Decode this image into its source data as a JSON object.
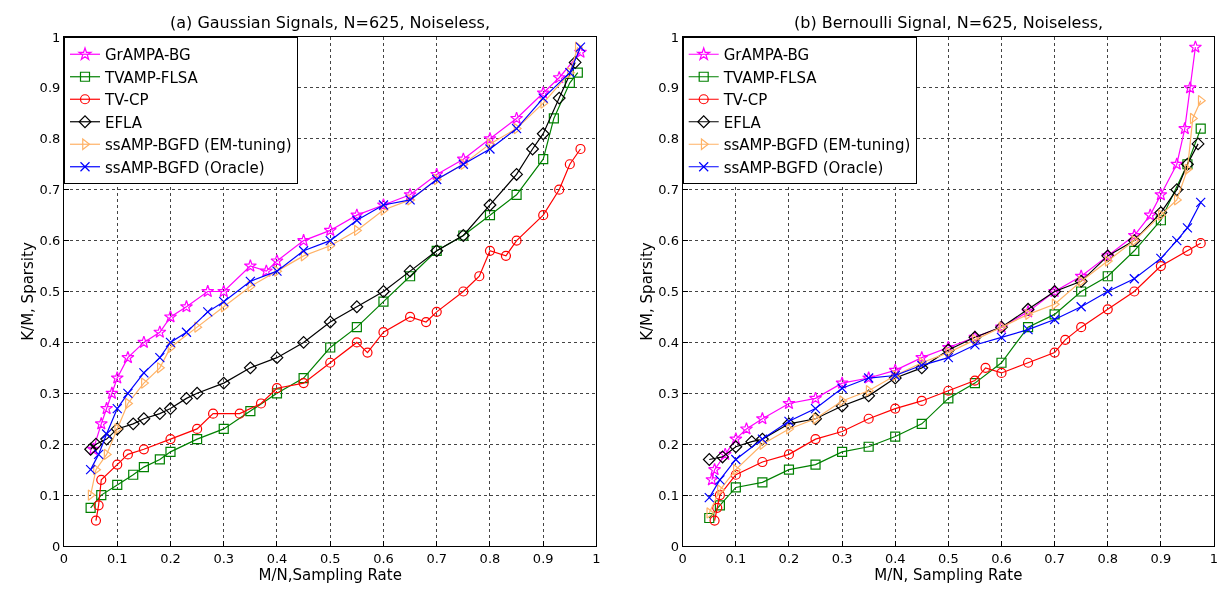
{
  "chart_data": [
    {
      "type": "line",
      "title": "(a) Gaussian Signals, N=625, Noiseless,",
      "xlabel": "M/N,Sampling Rate",
      "ylabel": "K/M, Sparsity",
      "xlim": [
        0,
        1
      ],
      "ylim": [
        0,
        1
      ],
      "xticks": [
        0,
        0.1,
        0.2,
        0.3,
        0.4,
        0.5,
        0.6,
        0.7,
        0.8,
        0.9,
        1
      ],
      "yticks": [
        0,
        0.1,
        0.2,
        0.3,
        0.4,
        0.5,
        0.6,
        0.7,
        0.8,
        0.9,
        1
      ],
      "grid": true,
      "legend": "top left",
      "series": [
        {
          "name": "GrAMPA-BG",
          "color": "#ff00ff",
          "marker": "star",
          "x": [
            0.055,
            0.07,
            0.08,
            0.09,
            0.1,
            0.12,
            0.15,
            0.18,
            0.2,
            0.23,
            0.27,
            0.3,
            0.35,
            0.38,
            0.4,
            0.45,
            0.5,
            0.55,
            0.6,
            0.65,
            0.7,
            0.75,
            0.8,
            0.85,
            0.9,
            0.93,
            0.97
          ],
          "values": [
            0.19,
            0.24,
            0.27,
            0.3,
            0.33,
            0.37,
            0.4,
            0.42,
            0.45,
            0.47,
            0.5,
            0.5,
            0.55,
            0.54,
            0.56,
            0.6,
            0.62,
            0.65,
            0.67,
            0.69,
            0.73,
            0.76,
            0.8,
            0.84,
            0.89,
            0.92,
            0.97
          ]
        },
        {
          "name": "TVAMP-FLSA",
          "color": "#008000",
          "marker": "square",
          "x": [
            0.05,
            0.07,
            0.1,
            0.13,
            0.15,
            0.18,
            0.2,
            0.25,
            0.3,
            0.35,
            0.4,
            0.45,
            0.5,
            0.55,
            0.6,
            0.65,
            0.7,
            0.75,
            0.8,
            0.85,
            0.9,
            0.92,
            0.95,
            0.965
          ],
          "values": [
            0.075,
            0.1,
            0.12,
            0.14,
            0.155,
            0.17,
            0.185,
            0.21,
            0.23,
            0.265,
            0.3,
            0.33,
            0.39,
            0.43,
            0.48,
            0.53,
            0.58,
            0.61,
            0.65,
            0.69,
            0.76,
            0.84,
            0.91,
            0.93
          ]
        },
        {
          "name": "TV-CP",
          "color": "#ff0000",
          "marker": "circle",
          "x": [
            0.06,
            0.065,
            0.07,
            0.1,
            0.12,
            0.15,
            0.2,
            0.25,
            0.28,
            0.33,
            0.37,
            0.4,
            0.45,
            0.5,
            0.55,
            0.57,
            0.6,
            0.65,
            0.68,
            0.7,
            0.75,
            0.78,
            0.8,
            0.83,
            0.85,
            0.9,
            0.93,
            0.95,
            0.97
          ],
          "values": [
            0.05,
            0.08,
            0.13,
            0.16,
            0.18,
            0.19,
            0.21,
            0.23,
            0.26,
            0.26,
            0.28,
            0.31,
            0.32,
            0.36,
            0.4,
            0.38,
            0.42,
            0.45,
            0.44,
            0.46,
            0.5,
            0.53,
            0.58,
            0.57,
            0.6,
            0.65,
            0.7,
            0.75,
            0.78
          ]
        },
        {
          "name": "EFLA",
          "color": "#000000",
          "marker": "diamond",
          "x": [
            0.05,
            0.06,
            0.08,
            0.1,
            0.13,
            0.15,
            0.18,
            0.2,
            0.23,
            0.25,
            0.3,
            0.35,
            0.4,
            0.45,
            0.5,
            0.55,
            0.6,
            0.65,
            0.7,
            0.75,
            0.8,
            0.85,
            0.88,
            0.9,
            0.93,
            0.96
          ],
          "values": [
            0.19,
            0.2,
            0.21,
            0.23,
            0.24,
            0.25,
            0.26,
            0.27,
            0.29,
            0.3,
            0.32,
            0.35,
            0.37,
            0.4,
            0.44,
            0.47,
            0.5,
            0.54,
            0.58,
            0.61,
            0.67,
            0.73,
            0.78,
            0.81,
            0.88,
            0.95
          ]
        },
        {
          "name": "ssAMP-BGFD (EM-tuning)",
          "color": "#ffb266",
          "marker": "triangle",
          "x": [
            0.05,
            0.06,
            0.08,
            0.1,
            0.12,
            0.15,
            0.18,
            0.2,
            0.25,
            0.3,
            0.35,
            0.4,
            0.45,
            0.5,
            0.55,
            0.6,
            0.65,
            0.7,
            0.75,
            0.8,
            0.85,
            0.9,
            0.95,
            0.965
          ],
          "values": [
            0.1,
            0.15,
            0.18,
            0.23,
            0.28,
            0.32,
            0.35,
            0.39,
            0.43,
            0.47,
            0.51,
            0.54,
            0.57,
            0.59,
            0.62,
            0.66,
            0.68,
            0.72,
            0.75,
            0.79,
            0.82,
            0.87,
            0.93,
            0.98
          ]
        },
        {
          "name": "ssAMP-BGFD (Oracle)",
          "color": "#0000ff",
          "marker": "cross",
          "x": [
            0.05,
            0.065,
            0.08,
            0.1,
            0.12,
            0.15,
            0.18,
            0.2,
            0.23,
            0.27,
            0.3,
            0.35,
            0.4,
            0.45,
            0.5,
            0.55,
            0.6,
            0.65,
            0.7,
            0.75,
            0.8,
            0.85,
            0.9,
            0.95,
            0.97
          ],
          "values": [
            0.15,
            0.18,
            0.22,
            0.27,
            0.3,
            0.34,
            0.37,
            0.4,
            0.42,
            0.46,
            0.48,
            0.52,
            0.54,
            0.58,
            0.6,
            0.64,
            0.67,
            0.68,
            0.72,
            0.75,
            0.78,
            0.82,
            0.88,
            0.93,
            0.98
          ]
        }
      ]
    },
    {
      "type": "line",
      "title": "(b) Bernoulli Signal, N=625, Noiseless,",
      "xlabel": "M/N, Sampling Rate",
      "ylabel": "K/M, Sparsity",
      "xlim": [
        0,
        1
      ],
      "ylim": [
        0,
        1
      ],
      "xticks": [
        0,
        0.1,
        0.2,
        0.3,
        0.4,
        0.5,
        0.6,
        0.7,
        0.8,
        0.9,
        1
      ],
      "yticks": [
        0,
        0.1,
        0.2,
        0.3,
        0.4,
        0.5,
        0.6,
        0.7,
        0.8,
        0.9,
        1
      ],
      "grid": true,
      "legend": "top left",
      "series": [
        {
          "name": "GrAMPA-BG",
          "color": "#ff00ff",
          "marker": "star",
          "x": [
            0.055,
            0.06,
            0.08,
            0.1,
            0.12,
            0.15,
            0.2,
            0.25,
            0.3,
            0.35,
            0.4,
            0.45,
            0.5,
            0.55,
            0.6,
            0.65,
            0.7,
            0.75,
            0.8,
            0.85,
            0.88,
            0.9,
            0.93,
            0.945,
            0.955,
            0.965
          ],
          "values": [
            0.13,
            0.15,
            0.18,
            0.21,
            0.23,
            0.25,
            0.28,
            0.29,
            0.32,
            0.33,
            0.345,
            0.37,
            0.39,
            0.41,
            0.43,
            0.46,
            0.5,
            0.53,
            0.57,
            0.61,
            0.65,
            0.69,
            0.75,
            0.82,
            0.9,
            0.98
          ]
        },
        {
          "name": "TVAMP-FLSA",
          "color": "#008000",
          "marker": "square",
          "x": [
            0.05,
            0.07,
            0.1,
            0.15,
            0.2,
            0.25,
            0.3,
            0.35,
            0.4,
            0.45,
            0.5,
            0.55,
            0.6,
            0.65,
            0.7,
            0.75,
            0.8,
            0.85,
            0.9,
            0.95,
            0.975
          ],
          "values": [
            0.055,
            0.08,
            0.115,
            0.125,
            0.15,
            0.16,
            0.185,
            0.195,
            0.215,
            0.24,
            0.29,
            0.32,
            0.36,
            0.43,
            0.455,
            0.5,
            0.53,
            0.58,
            0.64,
            0.75,
            0.82
          ]
        },
        {
          "name": "TV-CP",
          "color": "#ff0000",
          "marker": "circle",
          "x": [
            0.06,
            0.065,
            0.07,
            0.1,
            0.15,
            0.2,
            0.25,
            0.3,
            0.35,
            0.4,
            0.45,
            0.5,
            0.55,
            0.57,
            0.6,
            0.65,
            0.7,
            0.72,
            0.75,
            0.8,
            0.85,
            0.9,
            0.95,
            0.975
          ],
          "values": [
            0.05,
            0.075,
            0.1,
            0.14,
            0.165,
            0.18,
            0.21,
            0.225,
            0.25,
            0.27,
            0.285,
            0.305,
            0.325,
            0.35,
            0.34,
            0.36,
            0.38,
            0.405,
            0.43,
            0.465,
            0.5,
            0.55,
            0.58,
            0.595
          ]
        },
        {
          "name": "EFLA",
          "color": "#000000",
          "marker": "diamond",
          "x": [
            0.05,
            0.075,
            0.1,
            0.13,
            0.15,
            0.2,
            0.25,
            0.3,
            0.35,
            0.4,
            0.45,
            0.5,
            0.55,
            0.6,
            0.65,
            0.7,
            0.75,
            0.8,
            0.85,
            0.9,
            0.93,
            0.95,
            0.97
          ],
          "values": [
            0.17,
            0.175,
            0.195,
            0.205,
            0.21,
            0.24,
            0.25,
            0.275,
            0.295,
            0.33,
            0.35,
            0.385,
            0.41,
            0.43,
            0.465,
            0.5,
            0.52,
            0.57,
            0.6,
            0.655,
            0.7,
            0.75,
            0.79
          ]
        },
        {
          "name": "ssAMP-BGFD (EM-tuning)",
          "color": "#ffb266",
          "marker": "triangle",
          "x": [
            0.05,
            0.07,
            0.1,
            0.15,
            0.2,
            0.25,
            0.3,
            0.35,
            0.4,
            0.45,
            0.5,
            0.55,
            0.6,
            0.65,
            0.7,
            0.75,
            0.8,
            0.85,
            0.9,
            0.93,
            0.95,
            0.96,
            0.975
          ],
          "values": [
            0.065,
            0.11,
            0.15,
            0.2,
            0.23,
            0.25,
            0.285,
            0.305,
            0.335,
            0.36,
            0.38,
            0.405,
            0.43,
            0.455,
            0.475,
            0.52,
            0.56,
            0.6,
            0.65,
            0.68,
            0.74,
            0.84,
            0.875
          ]
        },
        {
          "name": "ssAMP-BGFD (Oracle)",
          "color": "#0000ff",
          "marker": "cross",
          "x": [
            0.05,
            0.07,
            0.1,
            0.15,
            0.2,
            0.25,
            0.3,
            0.35,
            0.4,
            0.45,
            0.5,
            0.55,
            0.6,
            0.65,
            0.7,
            0.75,
            0.8,
            0.85,
            0.9,
            0.93,
            0.95,
            0.975
          ],
          "values": [
            0.095,
            0.13,
            0.17,
            0.21,
            0.245,
            0.27,
            0.31,
            0.33,
            0.335,
            0.355,
            0.37,
            0.395,
            0.41,
            0.425,
            0.445,
            0.47,
            0.5,
            0.525,
            0.565,
            0.6,
            0.625,
            0.675
          ]
        }
      ]
    }
  ]
}
